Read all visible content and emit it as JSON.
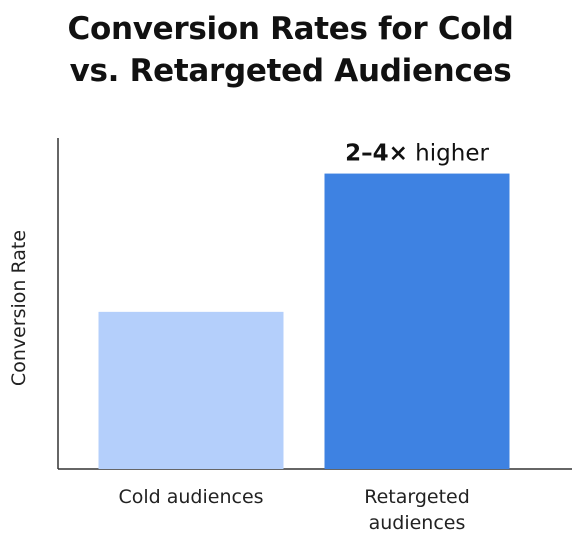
{
  "chart_data": {
    "type": "bar",
    "title_lines": [
      "Conversion Rates for Cold",
      "vs. Retargeted Audiences"
    ],
    "xlabel": "",
    "ylabel": "Conversion Rate",
    "categories": [
      {
        "lines": [
          "Cold audiences"
        ]
      },
      {
        "lines": [
          "Retargeted",
          "audiences"
        ]
      }
    ],
    "values": [
      1,
      1.88
    ],
    "ylim": [
      0,
      2.1
    ],
    "colors": [
      "#b4cffb",
      "#3e82e2"
    ],
    "annotation": {
      "strong": "2–4×",
      "rest": " higher",
      "bar_index": 1
    },
    "grid": false,
    "legend": "none"
  }
}
